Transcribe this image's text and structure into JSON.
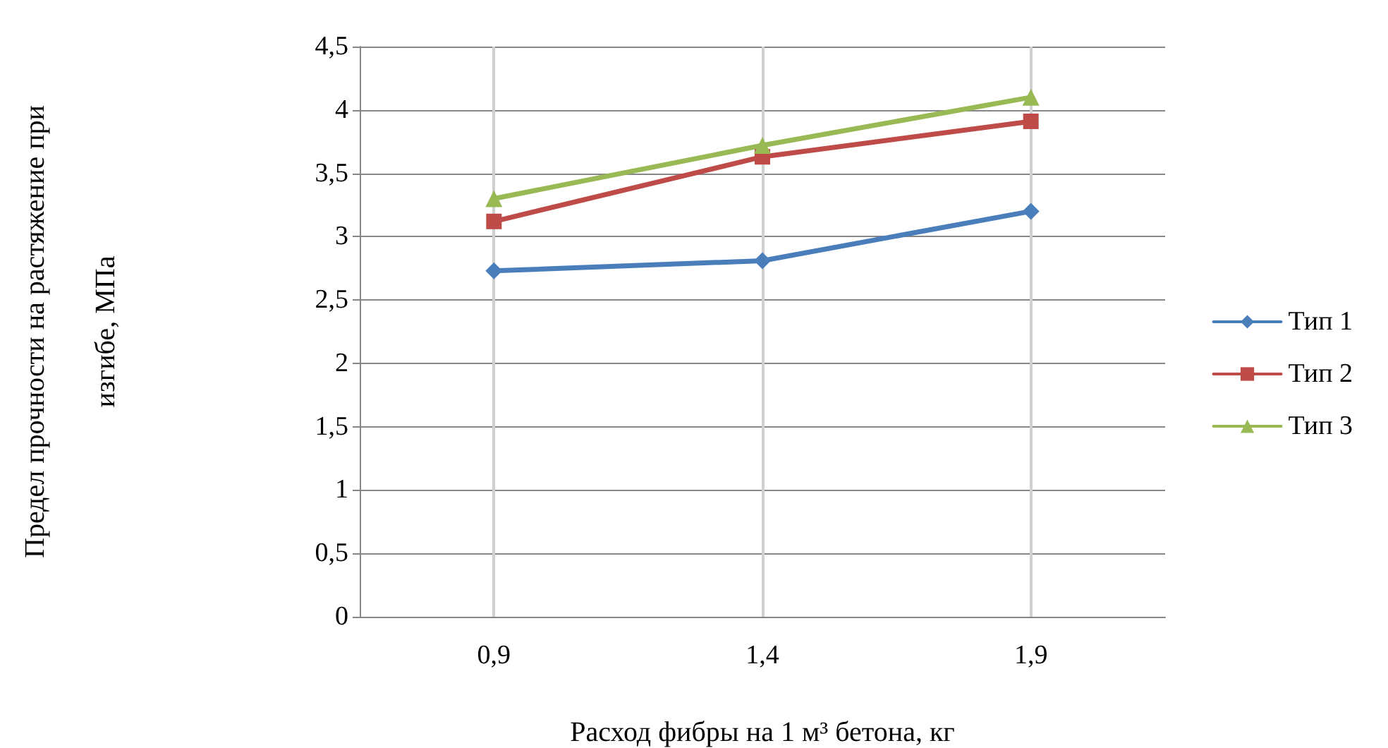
{
  "chart_data": {
    "type": "line",
    "xlabel": "Расход фибры на 1 м³ бетона, кг",
    "ylabel": "Предел прочности на растяжение при изгибе, МПа",
    "x": [
      0.9,
      1.4,
      1.9
    ],
    "xlim": [
      0.65,
      2.15
    ],
    "xticks": [
      {
        "value": 0.9,
        "label": "0,9"
      },
      {
        "value": 1.4,
        "label": "1,4"
      },
      {
        "value": 1.9,
        "label": "1,9"
      }
    ],
    "series": [
      {
        "name": "Тип 1",
        "color": "#4a7ebb",
        "marker": "diamond",
        "values": [
          2.73,
          2.81,
          3.2
        ]
      },
      {
        "name": "Тип 2",
        "color": "#be4b48",
        "marker": "square",
        "values": [
          3.12,
          3.63,
          3.91
        ]
      },
      {
        "name": "Тип 3",
        "color": "#98b954",
        "marker": "triangle",
        "values": [
          3.3,
          3.72,
          4.1
        ]
      }
    ],
    "ylim": [
      0,
      4.5
    ],
    "yticks": [
      {
        "value": 0,
        "label": "0"
      },
      {
        "value": 0.5,
        "label": "0,5"
      },
      {
        "value": 1,
        "label": "1"
      },
      {
        "value": 1.5,
        "label": "1,5"
      },
      {
        "value": 2,
        "label": "2"
      },
      {
        "value": 2.5,
        "label": "2,5"
      },
      {
        "value": 3,
        "label": "3"
      },
      {
        "value": 3.5,
        "label": "3,5"
      },
      {
        "value": 4,
        "label": "4"
      },
      {
        "value": 4.5,
        "label": "4,5"
      }
    ],
    "grid": true,
    "legend": "right",
    "line_style": "solid"
  }
}
